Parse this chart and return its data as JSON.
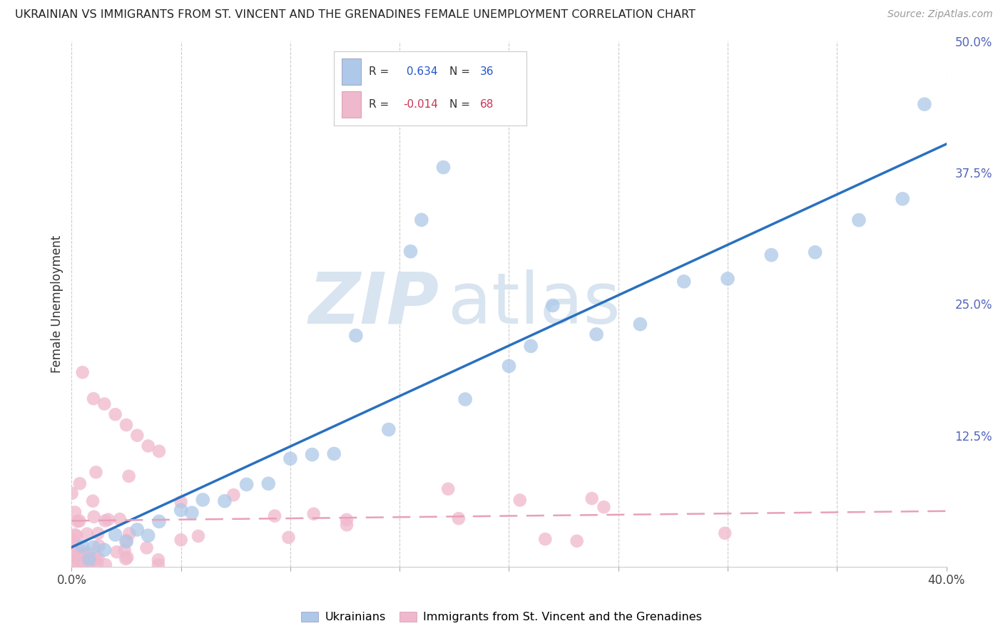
{
  "title": "UKRAINIAN VS IMMIGRANTS FROM ST. VINCENT AND THE GRENADINES FEMALE UNEMPLOYMENT CORRELATION CHART",
  "source": "Source: ZipAtlas.com",
  "ylabel": "Female Unemployment",
  "xlim": [
    0.0,
    0.4
  ],
  "ylim": [
    0.0,
    0.5
  ],
  "ytick_positions": [
    0.0,
    0.125,
    0.25,
    0.375,
    0.5
  ],
  "ytick_labels": [
    "",
    "12.5%",
    "25.0%",
    "37.5%",
    "50.0%"
  ],
  "blue_R": 0.634,
  "blue_N": 36,
  "pink_R": -0.014,
  "pink_N": 68,
  "blue_color": "#adc8e8",
  "pink_color": "#f0b8cc",
  "blue_line_color": "#2970c0",
  "pink_line_color": "#e8a0b8",
  "watermark_zip": "ZIP",
  "watermark_atlas": "atlas",
  "background_color": "#ffffff",
  "grid_color": "#cccccc"
}
